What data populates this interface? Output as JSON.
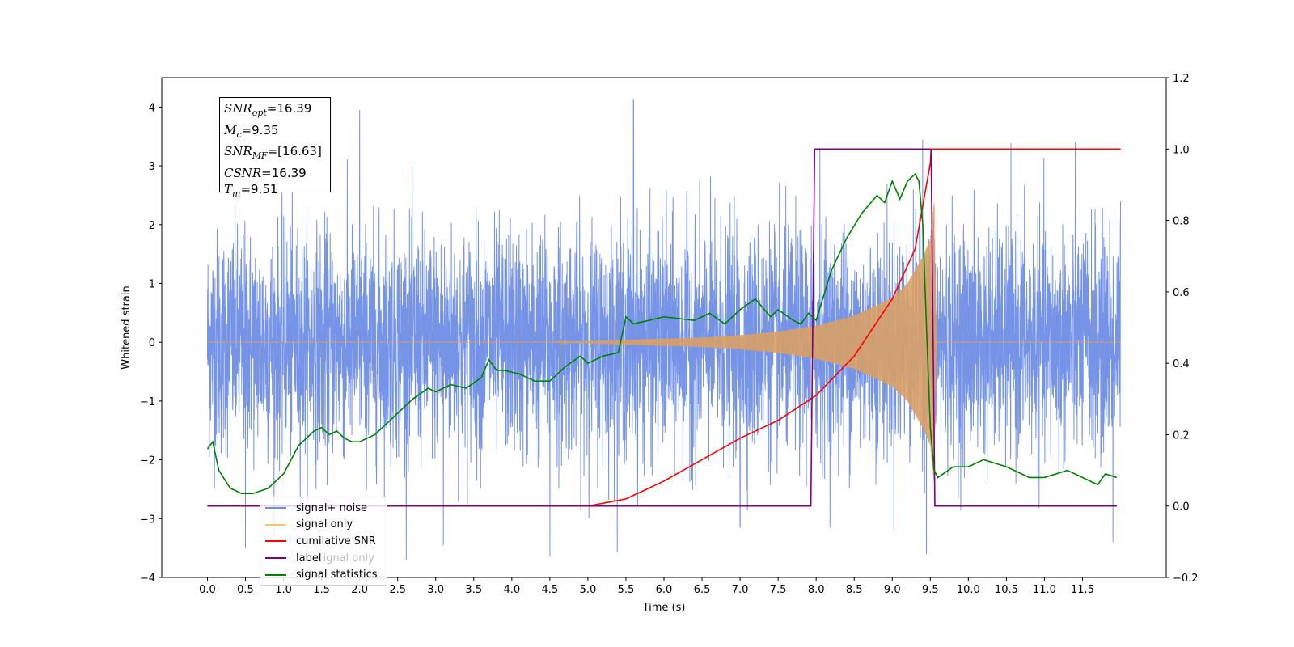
{
  "chart_data": {
    "type": "line",
    "xlabel": "Time (s)",
    "ylabel": "Whitened strain",
    "xlim": [
      -0.6,
      12.6
    ],
    "ylim": [
      -4,
      4.5
    ],
    "y2lim": [
      -0.2,
      1.2
    ],
    "x_ticks": [
      "0.0",
      "0.5",
      "1.0",
      "1.5",
      "2.0",
      "2.5",
      "3.0",
      "3.5",
      "4.0",
      "4.5",
      "5.0",
      "5.5",
      "6.0",
      "6.5",
      "7.0",
      "7.5",
      "8.0",
      "8.5",
      "9.0",
      "9.5",
      "10.0",
      "10.5",
      "11.0",
      "11.5"
    ],
    "y_ticks": [
      4,
      3,
      2,
      1,
      0,
      -1,
      -2,
      -3,
      -4
    ],
    "y2_ticks": [
      "1.2",
      "1.0",
      "0.8",
      "0.6",
      "0.4",
      "0.2",
      "0.0",
      "−0.2"
    ],
    "y_tick_labels": [
      "4",
      "3",
      "2",
      "1",
      "0",
      "−1",
      "−2",
      "−3",
      "−4"
    ],
    "colors": {
      "noise": "#6f8ee6",
      "signal": "#d9a066",
      "cumulative_snr": "#ff0000",
      "label": "#800080",
      "statistics": "#008000"
    },
    "annotations": {
      "snr_opt": "=16.39",
      "mc": "=9.35",
      "snr_mf": "=[16.63]",
      "csnr": "=16.39",
      "tm": "=9.51"
    },
    "legend": {
      "placement": "lower-left",
      "items": [
        "signal+ noise",
        "signal only",
        "cumilative SNR",
        "label",
        "signal statistics"
      ],
      "ghost_text_1": "ignal only",
      "ghost_text_2": "noise"
    },
    "series": [
      {
        "name": "signal+ noise",
        "axis": "left",
        "kind": "noise",
        "x_range": [
          0.0,
          12.0
        ],
        "std": 0.95,
        "peaks": [
          [
            0.5,
            -3.5
          ],
          [
            2.0,
            3.95
          ],
          [
            3.1,
            -3.45
          ],
          [
            4.5,
            -3.65
          ],
          [
            5.6,
            4.12
          ],
          [
            7.0,
            -3.15
          ],
          [
            8.05,
            3.3
          ],
          [
            9.4,
            3.45
          ],
          [
            9.45,
            -3.6
          ],
          [
            11.9,
            -3.4
          ],
          [
            12.0,
            2.4
          ]
        ]
      },
      {
        "name": "signal only",
        "axis": "left",
        "kind": "chirp",
        "x_range": [
          0.0,
          12.0
        ],
        "envelope": [
          [
            0.0,
            0.0
          ],
          [
            4.5,
            0.0
          ],
          [
            5.0,
            0.02
          ],
          [
            5.5,
            0.04
          ],
          [
            6.0,
            0.06
          ],
          [
            6.5,
            0.08
          ],
          [
            7.0,
            0.12
          ],
          [
            7.5,
            0.18
          ],
          [
            8.0,
            0.28
          ],
          [
            8.5,
            0.45
          ],
          [
            9.0,
            0.75
          ],
          [
            9.2,
            1.0
          ],
          [
            9.4,
            1.45
          ],
          [
            9.5,
            1.75
          ],
          [
            9.55,
            2.4
          ],
          [
            9.58,
            0.0
          ],
          [
            12.0,
            0.0
          ]
        ]
      },
      {
        "name": "cumilative SNR",
        "axis": "right",
        "x": [
          0.0,
          5.0,
          5.5,
          6.0,
          6.5,
          7.0,
          7.5,
          8.0,
          8.5,
          9.0,
          9.3,
          9.5,
          9.51,
          12.0
        ],
        "values": [
          0.0,
          0.0,
          0.02,
          0.07,
          0.13,
          0.19,
          0.24,
          0.31,
          0.42,
          0.58,
          0.72,
          0.96,
          1.0,
          1.0
        ]
      },
      {
        "name": "label",
        "axis": "right",
        "x": [
          0.0,
          7.93,
          7.98,
          9.51,
          9.56,
          11.95
        ],
        "values": [
          0.0,
          0.0,
          1.0,
          1.0,
          0.0,
          0.0
        ]
      },
      {
        "name": "signal statistics",
        "axis": "right",
        "x": [
          0.0,
          0.07,
          0.15,
          0.3,
          0.45,
          0.6,
          0.8,
          1.0,
          1.2,
          1.4,
          1.5,
          1.6,
          1.7,
          1.8,
          1.9,
          2.0,
          2.2,
          2.5,
          2.7,
          2.9,
          3.0,
          3.2,
          3.4,
          3.6,
          3.7,
          3.8,
          3.9,
          4.1,
          4.3,
          4.5,
          4.7,
          4.9,
          5.0,
          5.2,
          5.4,
          5.5,
          5.6,
          5.8,
          6.0,
          6.4,
          6.6,
          6.8,
          7.0,
          7.2,
          7.4,
          7.5,
          7.7,
          7.8,
          7.9,
          8.0,
          8.2,
          8.4,
          8.6,
          8.8,
          8.9,
          9.0,
          9.1,
          9.2,
          9.3,
          9.35,
          9.4,
          9.45,
          9.5,
          9.55,
          9.6,
          9.8,
          10.0,
          10.2,
          10.5,
          10.8,
          11.0,
          11.3,
          11.5,
          11.7,
          11.8,
          11.95
        ],
        "values": [
          0.16,
          0.18,
          0.1,
          0.05,
          0.035,
          0.035,
          0.05,
          0.09,
          0.17,
          0.21,
          0.22,
          0.2,
          0.21,
          0.19,
          0.18,
          0.18,
          0.2,
          0.26,
          0.3,
          0.33,
          0.32,
          0.34,
          0.33,
          0.36,
          0.41,
          0.38,
          0.38,
          0.37,
          0.35,
          0.35,
          0.39,
          0.42,
          0.4,
          0.42,
          0.43,
          0.53,
          0.51,
          0.52,
          0.53,
          0.52,
          0.54,
          0.51,
          0.55,
          0.58,
          0.53,
          0.55,
          0.52,
          0.51,
          0.54,
          0.52,
          0.66,
          0.75,
          0.82,
          0.87,
          0.85,
          0.91,
          0.86,
          0.91,
          0.93,
          0.91,
          0.79,
          0.5,
          0.22,
          0.1,
          0.08,
          0.11,
          0.11,
          0.13,
          0.11,
          0.08,
          0.08,
          0.1,
          0.08,
          0.06,
          0.09,
          0.08
        ]
      }
    ]
  }
}
